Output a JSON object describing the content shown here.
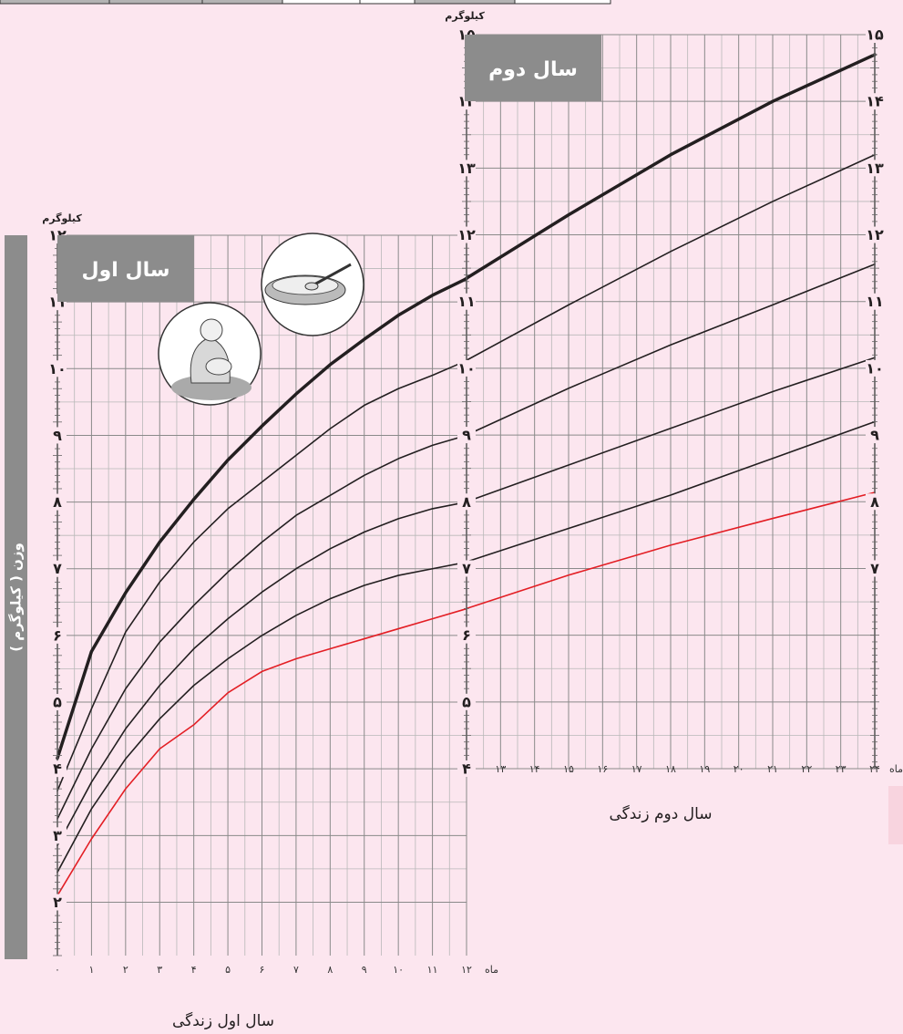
{
  "chart_data": [
    {
      "type": "line",
      "title": "سال اول",
      "x_label": "سال اول زندگی",
      "y_label": "وزن ( کیلوگرم )",
      "y_unit": "کیلوگرم",
      "x_unit": "ماه",
      "x": [
        0,
        1,
        2,
        3,
        4,
        5,
        6,
        7,
        8,
        9,
        10,
        11,
        12
      ],
      "series": [
        {
          "color": "#231f20",
          "linewidth": 3.5,
          "values": [
            4.16,
            5.76,
            6.64,
            7.4,
            8.04,
            8.63,
            9.14,
            9.62,
            10.06,
            10.44,
            10.8,
            11.1,
            11.35
          ]
        },
        {
          "color": "#231f20",
          "linewidth": 1.6,
          "values": [
            3.67,
            4.9,
            6.05,
            6.8,
            7.4,
            7.9,
            8.3,
            8.7,
            9.1,
            9.45,
            9.7,
            9.9,
            10.12
          ]
        },
        {
          "color": "#231f20",
          "linewidth": 1.6,
          "values": [
            3.25,
            4.3,
            5.2,
            5.9,
            6.45,
            6.95,
            7.4,
            7.8,
            8.1,
            8.4,
            8.65,
            8.85,
            9.0
          ]
        },
        {
          "color": "#231f20",
          "linewidth": 1.6,
          "values": [
            2.85,
            3.8,
            4.6,
            5.25,
            5.8,
            6.25,
            6.65,
            7.0,
            7.3,
            7.55,
            7.75,
            7.9,
            8.0
          ]
        },
        {
          "color": "#231f20",
          "linewidth": 1.6,
          "values": [
            2.45,
            3.4,
            4.15,
            4.75,
            5.25,
            5.65,
            6.0,
            6.3,
            6.55,
            6.75,
            6.9,
            7.0,
            7.1
          ]
        },
        {
          "color": "#e31e24",
          "linewidth": 1.6,
          "values": [
            2.1,
            2.95,
            3.7,
            4.3,
            4.66,
            5.14,
            5.46,
            5.65,
            5.8,
            5.95,
            6.1,
            6.25,
            6.4
          ]
        }
      ],
      "xlim": [
        0,
        12
      ],
      "ylim": [
        1.2,
        12
      ],
      "xticks": [
        {
          "value": 0,
          "label": "۰"
        },
        {
          "value": 1,
          "label": "۱"
        },
        {
          "value": 2,
          "label": "۲"
        },
        {
          "value": 3,
          "label": "۳"
        },
        {
          "value": 4,
          "label": "۴"
        },
        {
          "value": 5,
          "label": "۵"
        },
        {
          "value": 6,
          "label": "۶"
        },
        {
          "value": 7,
          "label": "۷"
        },
        {
          "value": 8,
          "label": "۸"
        },
        {
          "value": 9,
          "label": "۹"
        },
        {
          "value": 10,
          "label": "۱۰"
        },
        {
          "value": 11,
          "label": "۱۱"
        },
        {
          "value": 12,
          "label": "۱۲"
        }
      ],
      "yticks": [
        {
          "value": 2,
          "label": "۲"
        },
        {
          "value": 3,
          "label": "۳"
        },
        {
          "value": 4,
          "label": "۴"
        },
        {
          "value": 5,
          "label": "۵"
        },
        {
          "value": 6,
          "label": "۶"
        },
        {
          "value": 7,
          "label": "۷"
        },
        {
          "value": 8,
          "label": "۸"
        },
        {
          "value": 9,
          "label": "۹"
        },
        {
          "value": 10,
          "label": "۱۰"
        },
        {
          "value": 11,
          "label": "۱۱"
        },
        {
          "value": 12,
          "label": "۱۲"
        }
      ],
      "grid": true
    },
    {
      "type": "line",
      "title": "سال دوم",
      "x_label": "سال دوم زندگی",
      "y_unit": "کیلوگرم",
      "x_unit": "ماه",
      "x": [
        12,
        15,
        18,
        21,
        24
      ],
      "series": [
        {
          "color": "#231f20",
          "linewidth": 3.5,
          "values": [
            11.35,
            12.3,
            13.2,
            14.0,
            14.7
          ]
        },
        {
          "color": "#231f20",
          "linewidth": 1.6,
          "values": [
            10.12,
            10.95,
            11.75,
            12.5,
            13.2
          ]
        },
        {
          "color": "#231f20",
          "linewidth": 1.6,
          "values": [
            9.0,
            9.7,
            10.35,
            10.95,
            11.56
          ]
        },
        {
          "color": "#231f20",
          "linewidth": 1.6,
          "values": [
            8.0,
            8.55,
            9.1,
            9.65,
            10.16
          ]
        },
        {
          "color": "#231f20",
          "linewidth": 1.6,
          "values": [
            7.1,
            7.6,
            8.1,
            8.65,
            9.2
          ]
        },
        {
          "color": "#e31e24",
          "linewidth": 1.6,
          "values": [
            6.4,
            6.9,
            7.35,
            7.75,
            8.14
          ]
        }
      ],
      "xlim": [
        12,
        24
      ],
      "ylim": [
        4,
        15
      ],
      "xticks": [
        {
          "value": 13,
          "label": "۱۳"
        },
        {
          "value": 14,
          "label": "۱۴"
        },
        {
          "value": 15,
          "label": "۱۵"
        },
        {
          "value": 16,
          "label": "۱۶"
        },
        {
          "value": 17,
          "label": "۱۷"
        },
        {
          "value": 18,
          "label": "۱۸"
        },
        {
          "value": 19,
          "label": "۱۹"
        },
        {
          "value": 20,
          "label": "۲۰"
        },
        {
          "value": 21,
          "label": "۲۱"
        },
        {
          "value": 22,
          "label": "۲۲"
        },
        {
          "value": 23,
          "label": "۲۳"
        },
        {
          "value": 24,
          "label": "۲۴"
        }
      ],
      "yticks": [
        {
          "value": 4,
          "label": "۴"
        },
        {
          "value": 5,
          "label": "۵"
        },
        {
          "value": 6,
          "label": "۶"
        },
        {
          "value": 7,
          "label": "۷"
        },
        {
          "value": 8,
          "label": "۸"
        },
        {
          "value": 9,
          "label": "۹"
        },
        {
          "value": 10,
          "label": "۱۰"
        },
        {
          "value": 11,
          "label": "۱۱"
        },
        {
          "value": 12,
          "label": "۱۲"
        },
        {
          "value": 13,
          "label": "۱۳"
        },
        {
          "value": 14,
          "label": "۱۴"
        },
        {
          "value": 15,
          "label": "۱۵"
        }
      ],
      "y2lim": [
        4,
        15
      ],
      "y2ticks": [
        {
          "value": 7,
          "label": "۷"
        },
        {
          "value": 8,
          "label": "۸"
        },
        {
          "value": 9,
          "label": "۹"
        },
        {
          "value": 10,
          "label": "۱۰"
        },
        {
          "value": 11,
          "label": "۱۱"
        },
        {
          "value": 12,
          "label": "۱۲"
        },
        {
          "value": 13,
          "label": "۱۳"
        },
        {
          "value": 14,
          "label": "۱۴"
        },
        {
          "value": 15,
          "label": "۱۵"
        }
      ],
      "grid": true
    }
  ]
}
